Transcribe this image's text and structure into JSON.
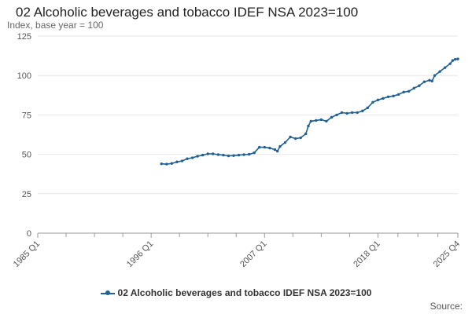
{
  "chart_data": {
    "type": "line",
    "title": "02 Alcoholic beverages and tobacco IDEF NSA 2023=100",
    "subtitle": "Index, base year = 100",
    "source_label": "Source:",
    "xlabel": "",
    "ylabel": "Index, base year = 100",
    "ylim": [
      0,
      125
    ],
    "yticks": [
      0,
      25,
      50,
      75,
      100,
      125
    ],
    "x_tick_labels": [
      "1985 Q1",
      "1996 Q1",
      "2007 Q1",
      "2018 Q1",
      "2025 Q4"
    ],
    "x_tick_values": [
      1985.0,
      1996.0,
      2007.0,
      2018.0,
      2025.75
    ],
    "xlim": [
      1985.0,
      2025.75
    ],
    "grid": true,
    "legend_position": "bottom",
    "colors": {
      "series": "#206095",
      "grid": "#e6e6e6",
      "axis": "#9a9a9a"
    },
    "series": [
      {
        "name": "02 Alcoholic beverages and tobacco IDEF NSA 2023=100",
        "points": [
          [
            1997.0,
            44.0
          ],
          [
            1997.5,
            43.8
          ],
          [
            1998.0,
            44.2
          ],
          [
            1998.5,
            45.2
          ],
          [
            1999.0,
            45.8
          ],
          [
            1999.5,
            47.2
          ],
          [
            2000.0,
            47.8
          ],
          [
            2000.5,
            48.8
          ],
          [
            2001.0,
            49.5
          ],
          [
            2001.5,
            50.3
          ],
          [
            2002.0,
            50.3
          ],
          [
            2002.5,
            49.8
          ],
          [
            2003.0,
            49.5
          ],
          [
            2003.5,
            49.0
          ],
          [
            2004.0,
            49.2
          ],
          [
            2004.5,
            49.5
          ],
          [
            2005.0,
            49.8
          ],
          [
            2005.5,
            50.0
          ],
          [
            2006.0,
            51.0
          ],
          [
            2006.5,
            54.5
          ],
          [
            2007.0,
            54.5
          ],
          [
            2007.5,
            54.0
          ],
          [
            2008.0,
            53.0
          ],
          [
            2008.25,
            52.0
          ],
          [
            2008.5,
            55.0
          ],
          [
            2009.0,
            57.5
          ],
          [
            2009.5,
            61.0
          ],
          [
            2010.0,
            60.0
          ],
          [
            2010.5,
            60.5
          ],
          [
            2011.0,
            63.0
          ],
          [
            2011.25,
            68.0
          ],
          [
            2011.5,
            71.0
          ],
          [
            2012.0,
            71.5
          ],
          [
            2012.5,
            72.0
          ],
          [
            2013.0,
            71.0
          ],
          [
            2013.5,
            73.5
          ],
          [
            2014.0,
            75.0
          ],
          [
            2014.5,
            76.5
          ],
          [
            2015.0,
            76.0
          ],
          [
            2015.5,
            76.5
          ],
          [
            2016.0,
            76.5
          ],
          [
            2016.5,
            77.5
          ],
          [
            2017.0,
            79.5
          ],
          [
            2017.5,
            83.0
          ],
          [
            2018.0,
            84.5
          ],
          [
            2018.5,
            85.5
          ],
          [
            2019.0,
            86.5
          ],
          [
            2019.5,
            87.0
          ],
          [
            2020.0,
            88.0
          ],
          [
            2020.5,
            89.5
          ],
          [
            2021.0,
            90.0
          ],
          [
            2021.5,
            92.0
          ],
          [
            2022.0,
            93.5
          ],
          [
            2022.5,
            96.0
          ],
          [
            2023.0,
            97.0
          ],
          [
            2023.25,
            96.5
          ],
          [
            2023.5,
            100.0
          ],
          [
            2024.0,
            102.5
          ],
          [
            2024.5,
            105.0
          ],
          [
            2025.0,
            107.5
          ],
          [
            2025.25,
            109.5
          ],
          [
            2025.5,
            110.3
          ],
          [
            2025.75,
            110.5
          ]
        ]
      }
    ]
  }
}
